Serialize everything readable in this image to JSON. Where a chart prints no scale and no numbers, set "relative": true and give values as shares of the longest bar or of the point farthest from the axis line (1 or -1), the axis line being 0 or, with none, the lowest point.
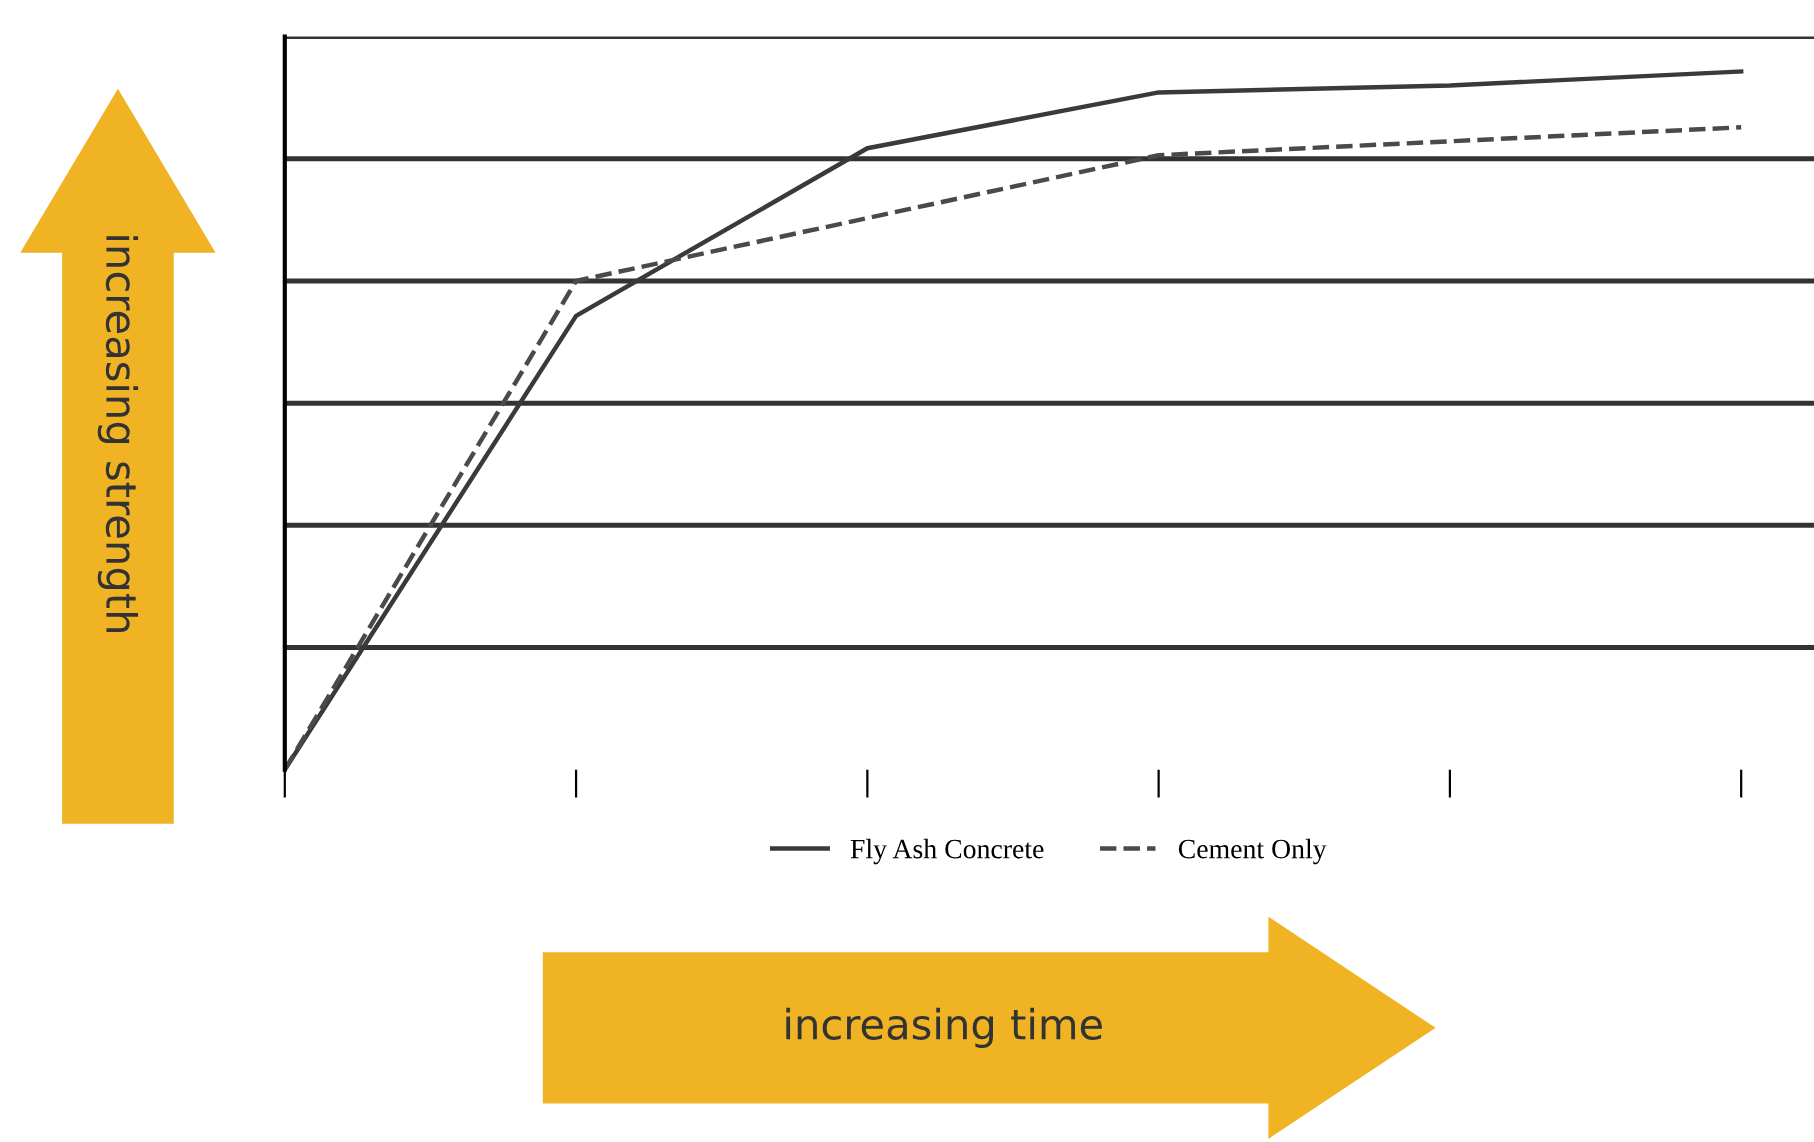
{
  "chart_data": {
    "type": "line",
    "relative": true,
    "annotations": [
      "increasing strength",
      "increasing time"
    ],
    "categories": [
      null,
      null,
      null,
      null,
      null,
      null
    ],
    "series": [
      {
        "name": "Fly Ash Concrete",
        "color": "#3a3a3a",
        "line_style": "solid",
        "values": [
          0,
          0.65,
          0.89,
          0.97,
          0.98,
          1.0
        ]
      },
      {
        "name": "Cement Only",
        "color": "#4a4a4a",
        "line_style": "dashed",
        "values": [
          0,
          0.7,
          0.79,
          0.88,
          0.9,
          0.92
        ]
      }
    ],
    "grid": "y",
    "legend": "bottom",
    "marker": "none"
  }
}
